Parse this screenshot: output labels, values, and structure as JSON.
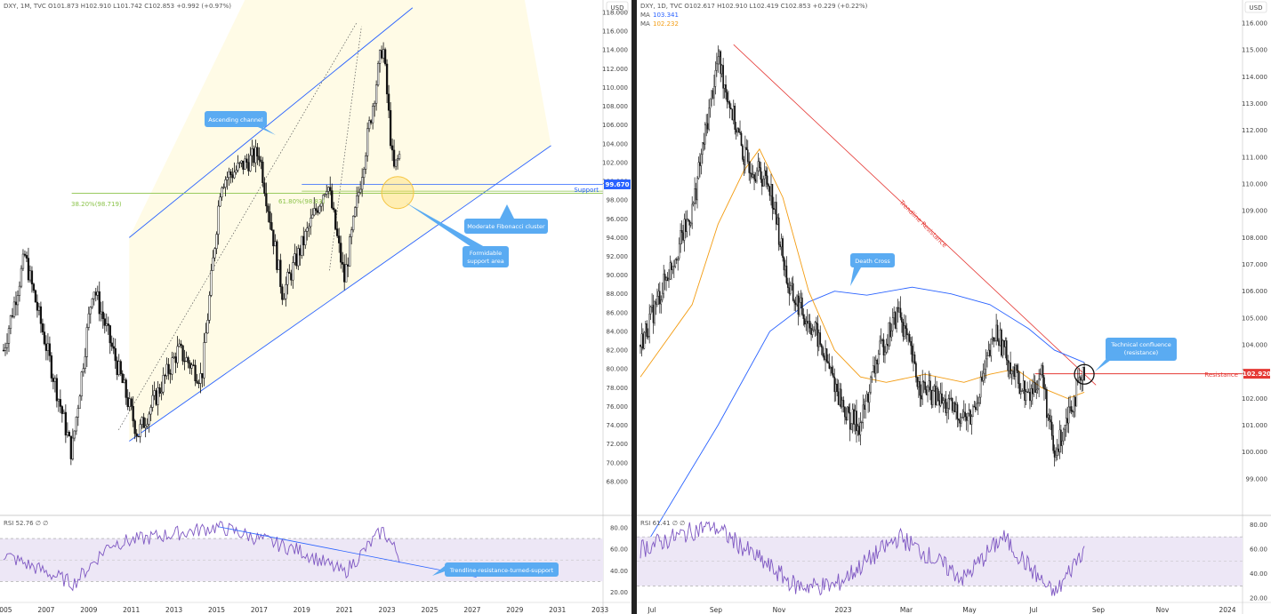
{
  "colors": {
    "candle": "#111111",
    "channel": "#2962ff",
    "fib": "#8bc34a",
    "ma_fast": "#f39c12",
    "ma_slow": "#2962ff",
    "rsi": "#7e57c2",
    "rsi_band": "#ede7f6",
    "callout": "#5aabf2",
    "trend_res": "#e53935",
    "price_badge": "#2962ff",
    "res_badge": "#e53935"
  },
  "left": {
    "legend": "DXY, 1M, TVC  O101.873  H102.910  L101.742  C102.853  +0.992 (+0.97%)",
    "currency": "USD",
    "rsi_legend": "RSI 52.76 ∅ ∅",
    "price_badge": "99.670",
    "support_label": "Support",
    "fib_382": "38.20%(98.719)",
    "fib_618": "61.80%(98.83)",
    "annotations": {
      "channel": "Ascending channel",
      "fib_cluster": "Moderate Fibonacci cluster",
      "support_area_1": "Formidable",
      "support_area_2": "support area",
      "rsi_note": "Trendline-resistance-turned-support"
    },
    "chart_data": {
      "type": "candlestick",
      "ylim": [
        66,
        118
      ],
      "y_ticks": [
        "118.000",
        "116.000",
        "114.000",
        "112.000",
        "110.000",
        "108.000",
        "106.000",
        "104.000",
        "102.000",
        "100.000",
        "98.000",
        "96.000",
        "94.000",
        "92.000",
        "90.000",
        "88.000",
        "86.000",
        "84.000",
        "82.000",
        "80.000",
        "78.000",
        "76.000",
        "74.000",
        "72.000",
        "70.000",
        "68.000"
      ],
      "x_ticks": [
        "2005",
        "2007",
        "2009",
        "2011",
        "2013",
        "2015",
        "2017",
        "2019",
        "2021",
        "2023",
        "2025",
        "2027",
        "2029",
        "2031",
        "2033"
      ],
      "rsi_ticks": [
        "80.00",
        "60.00",
        "40.00",
        "20.00"
      ],
      "key_points": [
        {
          "t": 2005.0,
          "v": 82
        },
        {
          "t": 2006.0,
          "v": 92
        },
        {
          "t": 2008.2,
          "v": 71
        },
        {
          "t": 2009.2,
          "v": 89
        },
        {
          "t": 2011.3,
          "v": 73
        },
        {
          "t": 2013.2,
          "v": 82
        },
        {
          "t": 2014.3,
          "v": 79
        },
        {
          "t": 2015.2,
          "v": 100
        },
        {
          "t": 2017.0,
          "v": 103
        },
        {
          "t": 2018.1,
          "v": 88
        },
        {
          "t": 2020.2,
          "v": 100
        },
        {
          "t": 2021.0,
          "v": 89.5
        },
        {
          "t": 2022.8,
          "v": 114.8
        },
        {
          "t": 2023.3,
          "v": 101
        },
        {
          "t": 2023.6,
          "v": 102.85
        }
      ],
      "rsi_key_points": [
        {
          "t": 2005.0,
          "v": 55
        },
        {
          "t": 2008.3,
          "v": 28
        },
        {
          "t": 2010.0,
          "v": 65
        },
        {
          "t": 2015.1,
          "v": 81
        },
        {
          "t": 2019.0,
          "v": 58
        },
        {
          "t": 2021.0,
          "v": 38
        },
        {
          "t": 2022.8,
          "v": 78
        },
        {
          "t": 2023.6,
          "v": 52.76
        }
      ]
    }
  },
  "right": {
    "legend": "DXY, 1D, TVC  O102.617  H102.910  L102.419  C102.853  +0.229 (+0.22%)",
    "ma1_label": "MA",
    "ma1_value": "103.341",
    "ma2_label": "MA",
    "ma2_value": "102.232",
    "currency": "USD",
    "rsi_legend": "RSI 61.41 ∅ ∅",
    "resistance_label": "Resistance",
    "res_badge": "102.920",
    "trendline_label": "Trendline Resistance",
    "annotations": {
      "death_cross": "Death Cross",
      "confluence_1": "Technical confluence",
      "confluence_2": "(resistance)"
    },
    "chart_data": {
      "type": "candlestick",
      "ylim": [
        98.2,
        116.4
      ],
      "y_ticks": [
        "116.000",
        "115.000",
        "114.000",
        "113.000",
        "112.000",
        "111.000",
        "110.000",
        "109.000",
        "108.000",
        "107.000",
        "106.000",
        "105.000",
        "104.000",
        "103.000",
        "102.000",
        "101.000",
        "100.000",
        "99.000"
      ],
      "x_ticks": [
        "Jul",
        "Sep",
        "Nov",
        "2023",
        "Mar",
        "May",
        "Jul",
        "Sep",
        "Nov",
        "2024"
      ],
      "rsi_ticks": [
        "80.00",
        "60.00",
        "40.00",
        "20.00"
      ],
      "key_points": [
        {
          "t": 0,
          "v": 104.0
        },
        {
          "t": 40,
          "v": 109.0
        },
        {
          "t": 60,
          "v": 114.7
        },
        {
          "t": 80,
          "v": 111.0
        },
        {
          "t": 100,
          "v": 110.0
        },
        {
          "t": 115,
          "v": 106.0
        },
        {
          "t": 135,
          "v": 104.5
        },
        {
          "t": 160,
          "v": 101.3
        },
        {
          "t": 170,
          "v": 101.0
        },
        {
          "t": 183,
          "v": 103.5
        },
        {
          "t": 200,
          "v": 105.3
        },
        {
          "t": 215,
          "v": 102.5
        },
        {
          "t": 240,
          "v": 101.6
        },
        {
          "t": 255,
          "v": 101.2
        },
        {
          "t": 275,
          "v": 104.5
        },
        {
          "t": 290,
          "v": 102.8
        },
        {
          "t": 300,
          "v": 102.0
        },
        {
          "t": 310,
          "v": 103.0
        },
        {
          "t": 320,
          "v": 99.7
        },
        {
          "t": 330,
          "v": 101.5
        },
        {
          "t": 343,
          "v": 102.85
        }
      ],
      "ma_fast": [
        {
          "t": 0,
          "v": 102.8
        },
        {
          "t": 40,
          "v": 105.5
        },
        {
          "t": 60,
          "v": 108.5
        },
        {
          "t": 80,
          "v": 110.5
        },
        {
          "t": 92,
          "v": 111.3
        },
        {
          "t": 110,
          "v": 109.5
        },
        {
          "t": 130,
          "v": 106.0
        },
        {
          "t": 150,
          "v": 103.8
        },
        {
          "t": 170,
          "v": 102.8
        },
        {
          "t": 190,
          "v": 102.6
        },
        {
          "t": 220,
          "v": 102.9
        },
        {
          "t": 250,
          "v": 102.6
        },
        {
          "t": 270,
          "v": 102.9
        },
        {
          "t": 290,
          "v": 103.1
        },
        {
          "t": 310,
          "v": 102.4
        },
        {
          "t": 330,
          "v": 102.0
        },
        {
          "t": 343,
          "v": 102.232
        }
      ],
      "ma_slow": [
        {
          "t": 0,
          "v": 96.2
        },
        {
          "t": 60,
          "v": 101.0
        },
        {
          "t": 100,
          "v": 104.5
        },
        {
          "t": 130,
          "v": 105.6
        },
        {
          "t": 150,
          "v": 106.0
        },
        {
          "t": 175,
          "v": 105.85
        },
        {
          "t": 210,
          "v": 106.15
        },
        {
          "t": 240,
          "v": 105.9
        },
        {
          "t": 270,
          "v": 105.5
        },
        {
          "t": 300,
          "v": 104.6
        },
        {
          "t": 320,
          "v": 103.8
        },
        {
          "t": 343,
          "v": 103.341
        }
      ],
      "rsi_key_points": [
        {
          "t": 0,
          "v": 60
        },
        {
          "t": 55,
          "v": 80
        },
        {
          "t": 120,
          "v": 30
        },
        {
          "t": 150,
          "v": 30
        },
        {
          "t": 200,
          "v": 70
        },
        {
          "t": 250,
          "v": 36
        },
        {
          "t": 280,
          "v": 70
        },
        {
          "t": 320,
          "v": 22
        },
        {
          "t": 343,
          "v": 61.41
        }
      ]
    }
  }
}
